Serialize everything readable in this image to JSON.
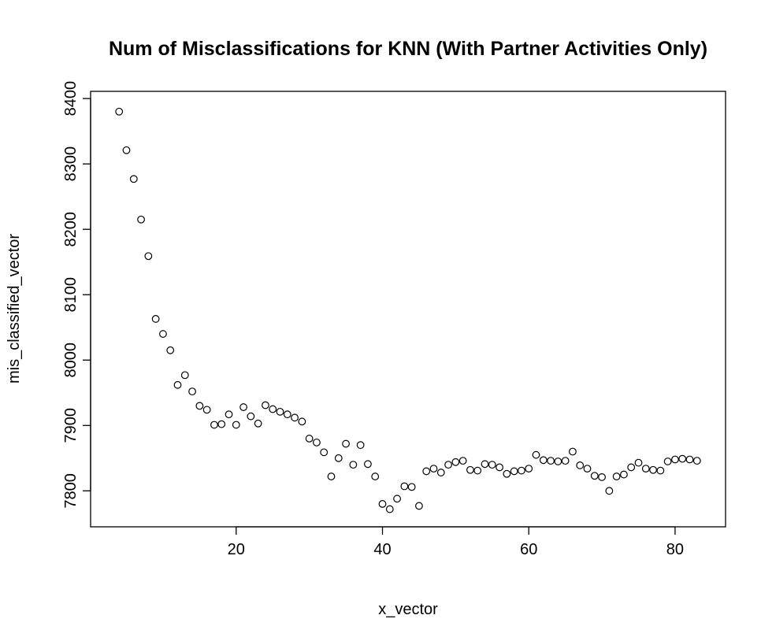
{
  "chart_data": {
    "type": "scatter",
    "title": "Num of Misclassifications for KNN (With Partner Activities Only)",
    "xlabel": "x_vector",
    "ylabel": "mis_classified_vector",
    "xlim": [
      0.1,
      86.9
    ],
    "ylim": [
      7745,
      8411
    ],
    "xticks": [
      20,
      40,
      60,
      80
    ],
    "yticks": [
      7800,
      7900,
      8000,
      8100,
      8200,
      8300,
      8400
    ],
    "x": [
      4,
      5,
      6,
      7,
      8,
      9,
      10,
      11,
      12,
      13,
      14,
      15,
      16,
      17,
      18,
      19,
      20,
      21,
      22,
      23,
      24,
      25,
      26,
      27,
      28,
      29,
      30,
      31,
      32,
      33,
      34,
      35,
      36,
      37,
      38,
      39,
      40,
      41,
      42,
      43,
      44,
      45,
      46,
      47,
      48,
      49,
      50,
      51,
      52,
      53,
      54,
      55,
      56,
      57,
      58,
      59,
      60,
      61,
      62,
      63,
      64,
      65,
      66,
      67,
      68,
      69,
      70,
      71,
      72,
      73,
      74,
      75,
      76,
      77,
      78,
      79,
      80,
      81,
      82,
      83
    ],
    "y": [
      8380,
      8321,
      8277,
      8215,
      8159,
      8063,
      8040,
      8015,
      7962,
      7977,
      7952,
      7930,
      7924,
      7901,
      7902,
      7917,
      7901,
      7928,
      7914,
      7903,
      7931,
      7925,
      7921,
      7917,
      7912,
      7906,
      7880,
      7874,
      7859,
      7822,
      7850,
      7872,
      7840,
      7870,
      7841,
      7822,
      7780,
      7772,
      7788,
      7807,
      7806,
      7777,
      7830,
      7834,
      7828,
      7840,
      7844,
      7846,
      7832,
      7831,
      7841,
      7840,
      7836,
      7826,
      7830,
      7831,
      7834,
      7855,
      7847,
      7846,
      7845,
      7846,
      7860,
      7839,
      7834,
      7823,
      7821,
      7800,
      7822,
      7825,
      7836,
      7843,
      7834,
      7832,
      7831,
      7845,
      7848,
      7849,
      7848,
      7846
    ]
  }
}
